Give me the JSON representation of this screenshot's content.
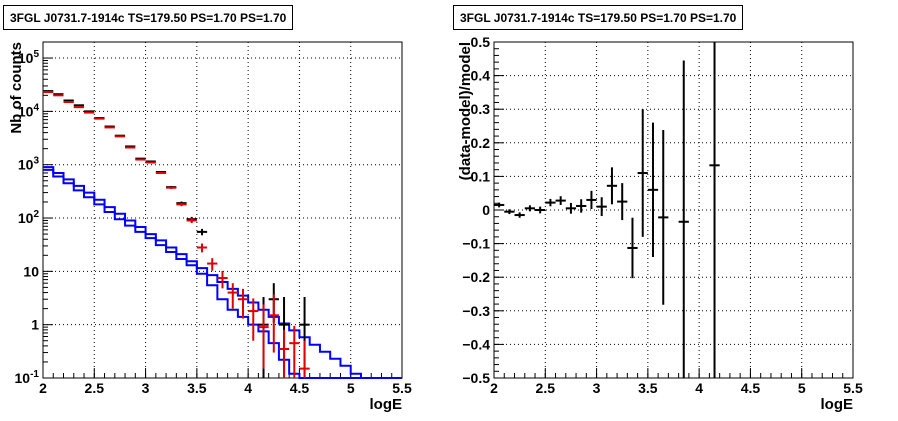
{
  "colors": {
    "model": "#0000ff",
    "data_red": "#e00000",
    "data_black": "#000000",
    "grid": "#000000",
    "background": "#ffffff"
  },
  "chart_data": [
    {
      "type": "histogram",
      "title": "3FGL J0731.7-1914c TS=179.50 PS=1.70 PS=1.70",
      "xlabel": "logE",
      "ylabel": "Nb of counts",
      "yscale": "log",
      "xlim": [
        2,
        5.5
      ],
      "ylim": [
        0.1,
        200000
      ],
      "xticks": [
        "2",
        "2.5",
        "3",
        "3.5",
        "4",
        "4.5",
        "5",
        "5.5"
      ],
      "yticks": [
        "10⁻¹",
        "1",
        "10",
        "10²",
        "10³",
        "10⁴",
        "10⁵"
      ],
      "grid": true,
      "bin_edges": [
        2.0,
        2.1,
        2.2,
        2.3,
        2.4,
        2.5,
        2.6,
        2.7,
        2.8,
        2.9,
        3.0,
        3.1,
        3.2,
        3.3,
        3.4,
        3.5,
        3.6,
        3.7,
        3.8,
        3.9,
        4.0,
        4.1,
        4.2,
        4.3,
        4.4,
        4.5,
        4.6,
        4.7,
        4.8,
        4.9,
        5.0,
        5.1,
        5.2,
        5.3,
        5.4,
        5.5
      ],
      "series": [
        {
          "role": "model",
          "style": "step",
          "color": "#0000ff",
          "values": [
            900,
            700,
            530,
            400,
            300,
            220,
            160,
            120,
            90,
            68,
            50,
            38,
            28,
            21,
            15.5,
            11.5,
            8.5,
            6.3,
            4.7,
            3.5,
            2.6,
            1.9,
            1.4,
            1.05,
            0.78,
            0.58,
            0.42,
            0.31,
            0.23,
            0.17,
            0.12,
            0.1,
            0.1,
            0.1,
            0.1
          ]
        },
        {
          "role": "model",
          "style": "step",
          "color": "#0000ff",
          "values": [
            800,
            600,
            450,
            330,
            245,
            180,
            130,
            95,
            72,
            55,
            42,
            31,
            23,
            17,
            13,
            9,
            5.5,
            3.0,
            1.9,
            1.4,
            1.0,
            0.75,
            0.45,
            0.22,
            0.12,
            0.1,
            0.1,
            0.1,
            0.1,
            0.1,
            0.1,
            0.1,
            0.1,
            0.1,
            0.1
          ]
        },
        {
          "role": "data",
          "style": "errorbar",
          "color": "#000000",
          "x": [
            2.05,
            2.15,
            2.25,
            2.35,
            2.45,
            2.55,
            2.65,
            2.75,
            2.85,
            2.95,
            3.05,
            3.15,
            3.25,
            3.35,
            3.45,
            3.55,
            4.15,
            4.25,
            4.35,
            4.55
          ],
          "y": [
            24000,
            21000,
            16000,
            13000,
            10000,
            7500,
            5200,
            3500,
            2200,
            1300,
            1150,
            730,
            380,
            190,
            95,
            55,
            1.0,
            3.0,
            1.0,
            1.0
          ],
          "yerr_low": [
            160,
            150,
            130,
            115,
            100,
            85,
            72,
            60,
            47,
            36,
            34,
            27,
            20,
            14,
            10,
            7.5,
            0.9,
            1.9,
            0.9,
            0.9
          ],
          "yerr_high": [
            160,
            150,
            130,
            115,
            100,
            85,
            72,
            60,
            47,
            36,
            34,
            27,
            20,
            14,
            10,
            7.5,
            2.3,
            3.0,
            2.3,
            2.3
          ]
        },
        {
          "role": "data",
          "style": "errorbar",
          "color": "#e00000",
          "x": [
            2.05,
            2.15,
            2.25,
            2.35,
            2.45,
            2.55,
            2.65,
            2.75,
            2.85,
            2.95,
            3.05,
            3.15,
            3.25,
            3.35,
            3.45,
            3.55,
            3.65,
            3.75,
            3.85,
            3.95,
            4.05,
            4.15,
            4.25,
            4.35,
            4.45,
            4.55
          ],
          "y": [
            23000,
            20000,
            15000,
            12000,
            9500,
            7300,
            5000,
            3400,
            2100,
            1250,
            1100,
            700,
            370,
            180,
            90,
            28,
            14,
            7.5,
            4.0,
            3.0,
            1.8,
            0.9,
            1.5,
            0.35,
            0.45,
            0.15
          ],
          "yerr_low": [
            150,
            140,
            120,
            110,
            97,
            85,
            70,
            58,
            46,
            35,
            33,
            26,
            19,
            13,
            9.5,
            5.3,
            3.7,
            2.7,
            2.0,
            1.7,
            1.3,
            0.75,
            1.2,
            0.25,
            0.35,
            0.12
          ],
          "yerr_high": [
            150,
            140,
            120,
            110,
            97,
            85,
            70,
            58,
            46,
            35,
            33,
            26,
            19,
            13,
            9.5,
            5.3,
            3.7,
            2.7,
            2.0,
            1.7,
            1.3,
            1.5,
            2.2,
            0.45,
            0.5,
            0.35
          ]
        }
      ]
    },
    {
      "type": "scatter",
      "title": "3FGL J0731.7-1914c TS=179.50 PS=1.70 PS=1.70",
      "xlabel": "logE",
      "ylabel": "(data-model)/model",
      "xlim": [
        2,
        5.5
      ],
      "ylim": [
        -0.5,
        0.5
      ],
      "xticks": [
        "2",
        "2.5",
        "3",
        "3.5",
        "4",
        "4.5",
        "5",
        "5.5"
      ],
      "yticks": [
        "−0.5",
        "−0.4",
        "−0.3",
        "−0.2",
        "−0.1",
        "0",
        "0.1",
        "0.2",
        "0.3",
        "0.4",
        "0.5"
      ],
      "grid": true,
      "series": [
        {
          "color": "#000000",
          "x": [
            2.05,
            2.15,
            2.25,
            2.35,
            2.45,
            2.55,
            2.65,
            2.75,
            2.85,
            2.95,
            3.05,
            3.15,
            3.25,
            3.35,
            3.45,
            3.55,
            3.65,
            3.85,
            4.15
          ],
          "y": [
            0.015,
            -0.005,
            -0.015,
            0.005,
            0.0,
            0.022,
            0.028,
            0.005,
            0.012,
            0.03,
            0.01,
            0.072,
            0.025,
            -0.113,
            0.11,
            0.06,
            -0.022,
            -0.035,
            0.133
          ],
          "yerr": [
            0.007,
            0.007,
            0.008,
            0.009,
            0.01,
            0.011,
            0.013,
            0.016,
            0.02,
            0.027,
            0.028,
            0.055,
            0.055,
            0.09,
            0.19,
            0.2,
            0.26,
            0.48,
            0.9
          ]
        }
      ]
    }
  ]
}
